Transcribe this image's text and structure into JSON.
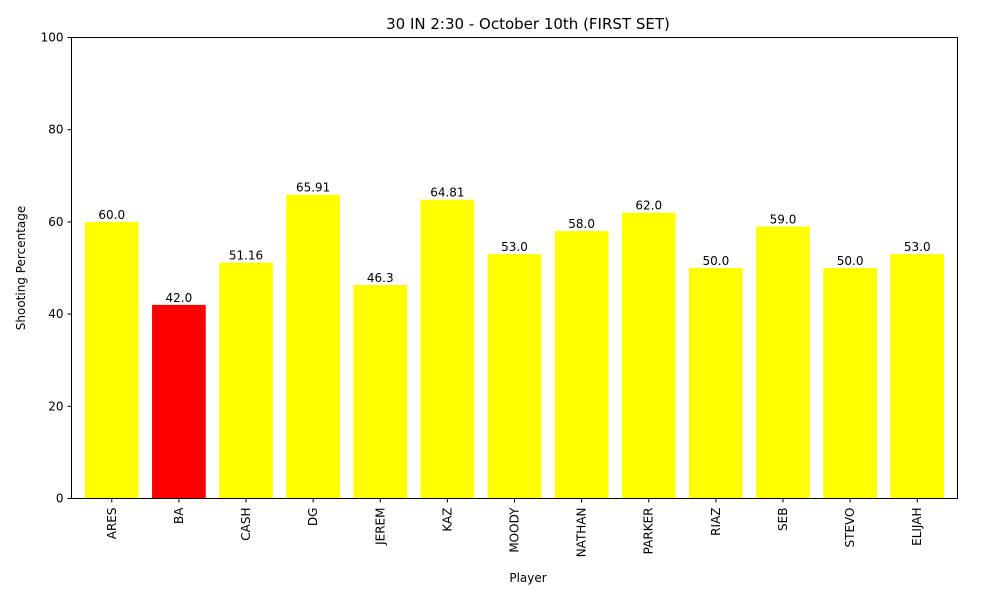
{
  "chart_data": {
    "type": "bar",
    "title": "30 IN 2:30 - October 10th (FIRST SET)",
    "xlabel": "Player",
    "ylabel": "Shooting Percentage",
    "ylim": [
      0,
      100
    ],
    "yticks": [
      0,
      20,
      40,
      60,
      80,
      100
    ],
    "categories": [
      "ARES",
      "BA",
      "CASH",
      "DG",
      "JEREM",
      "KAZ",
      "MOODY",
      "NATHAN",
      "PARKER",
      "RIAZ",
      "SEB",
      "STEVO",
      "ELIJAH"
    ],
    "values": [
      60.0,
      42.0,
      51.16,
      65.91,
      46.3,
      64.81,
      53.0,
      58.0,
      62.0,
      50.0,
      59.0,
      50.0,
      53.0
    ],
    "value_labels": [
      "60.0",
      "42.0",
      "51.16",
      "65.91",
      "46.3",
      "64.81",
      "53.0",
      "58.0",
      "62.0",
      "50.0",
      "59.0",
      "50.0",
      "53.0"
    ],
    "colors": [
      "#ffff00",
      "#ff0000",
      "#ffff00",
      "#ffff00",
      "#ffff00",
      "#ffff00",
      "#ffff00",
      "#ffff00",
      "#ffff00",
      "#ffff00",
      "#ffff00",
      "#ffff00",
      "#ffff00"
    ],
    "grid": false,
    "legend": "none"
  }
}
